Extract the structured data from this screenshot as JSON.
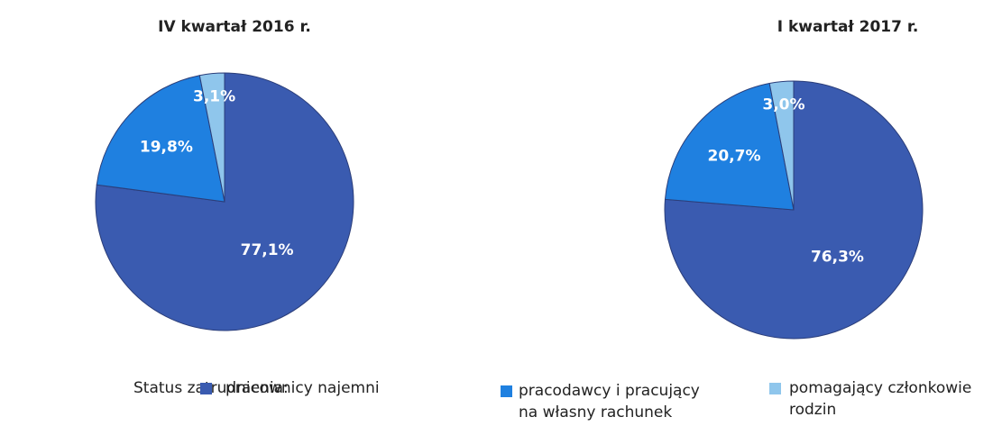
{
  "chart_data": [
    {
      "type": "pie",
      "title": "IV kwartał 2016 r.",
      "values": [
        77.1,
        19.8,
        3.1
      ],
      "value_labels": [
        "77,1%",
        "19,8%",
        "3,1%"
      ],
      "colors": [
        "#3a5bb0",
        "#1f80e0",
        "#8fc6ec"
      ]
    },
    {
      "type": "pie",
      "title": "I kwartał 2017 r.",
      "values": [
        76.3,
        20.7,
        3.0
      ],
      "value_labels": [
        "76,3%",
        "20,7%",
        "3,0%"
      ],
      "colors": [
        "#3a5bb0",
        "#1f80e0",
        "#8fc6ec"
      ]
    }
  ],
  "legend": {
    "title": "Status zatrudnienia:",
    "items": [
      "pracownicy najemni",
      "pracodawcy i pracujący na własny rachunek",
      "pomagający członkowie rodzin"
    ]
  }
}
